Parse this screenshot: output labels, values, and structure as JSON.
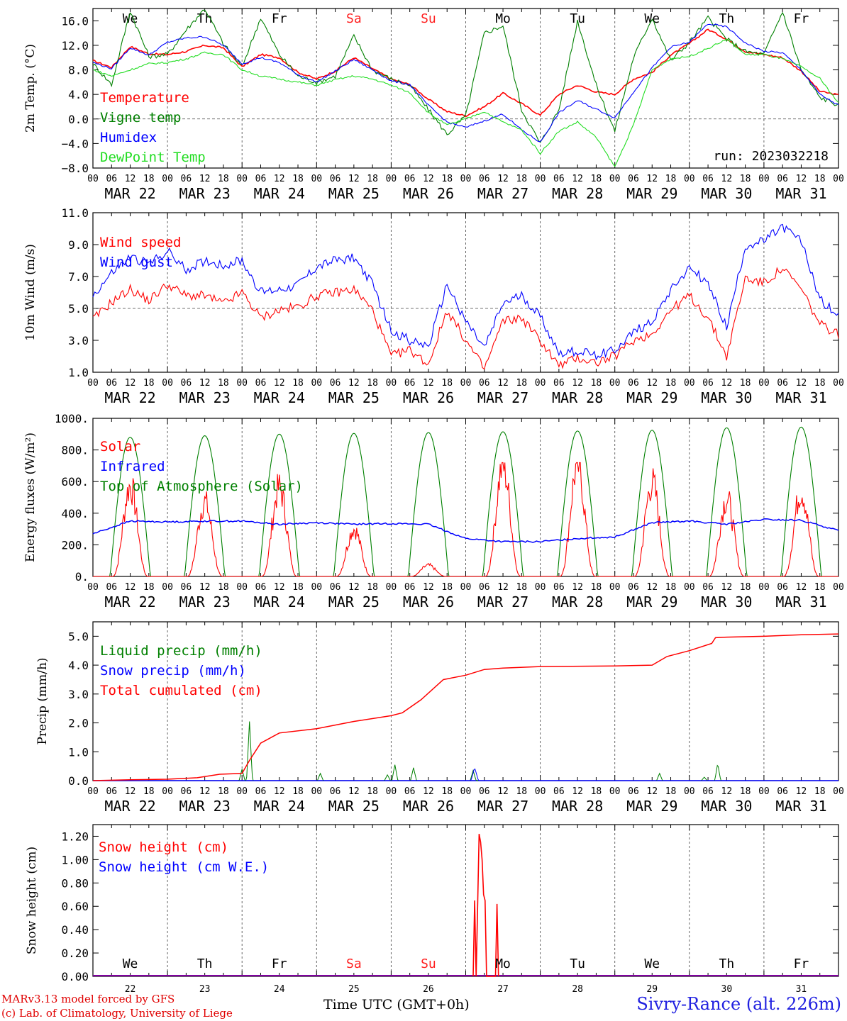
{
  "run_label": "run: 2023032218",
  "station": "Sivry-Rance (alt. 226m)",
  "credit_model": "MARv3.13 model forced by GFS",
  "credit_lab": "(c) Lab. of Climatology, University of Liege",
  "xaxis_title": "Time UTC (GMT+0h)",
  "xaxis_overlap": "MAR",
  "hour_ticks": [
    "00",
    "06",
    "12",
    "18"
  ],
  "dates": [
    "MAR 22",
    "MAR 23",
    "MAR 24",
    "MAR 25",
    "MAR 26",
    "MAR 27",
    "MAR 28",
    "MAR 29",
    "MAR 30",
    "MAR 31"
  ],
  "days_top": [
    {
      "label": "We",
      "weekend": false
    },
    {
      "label": "Th",
      "weekend": false
    },
    {
      "label": "Fr",
      "weekend": false
    },
    {
      "label": "Sa",
      "weekend": true
    },
    {
      "label": "Su",
      "weekend": true
    },
    {
      "label": "Mo",
      "weekend": false
    },
    {
      "label": "Tu",
      "weekend": false
    },
    {
      "label": "We",
      "weekend": false
    },
    {
      "label": "Th",
      "weekend": false
    },
    {
      "label": "Fr",
      "weekend": false
    }
  ],
  "day_numbers": [
    "22",
    "23",
    "24",
    "25",
    "26",
    "27",
    "28",
    "29",
    "30",
    "31"
  ],
  "colors": {
    "red": "#ff0000",
    "green": "#008000",
    "blue": "#0000ff",
    "lightgreen": "#22dd22",
    "sat": "#ff2020"
  },
  "chart_data": [
    {
      "type": "line",
      "ylabel": "2m Temp. (°C)",
      "ylim": [
        -8,
        18
      ],
      "yticks": [
        "16.0",
        "12.0",
        "8.0",
        "4.0",
        "0.0",
        "−4.0",
        "−8.0"
      ],
      "ytick_values": [
        16,
        12,
        8,
        4,
        0,
        -4,
        -8
      ],
      "zero_line": 0,
      "x_days": [
        0,
        0.25,
        0.5,
        0.75,
        1,
        1.25,
        1.5,
        1.75,
        2,
        2.25,
        2.5,
        2.75,
        3,
        3.25,
        3.5,
        3.75,
        4,
        4.25,
        4.5,
        4.75,
        5,
        5.25,
        5.5,
        5.75,
        6,
        6.25,
        6.5,
        6.75,
        7,
        7.25,
        7.5,
        7.75,
        8,
        8.25,
        8.5,
        8.75,
        9,
        9.25,
        9.5,
        9.75,
        10
      ],
      "series": [
        {
          "name": "Temperature",
          "color": "red",
          "values": [
            9.5,
            8.4,
            11.8,
            10.6,
            10.5,
            11.0,
            12.0,
            11.6,
            8.5,
            10.5,
            10.0,
            7.6,
            6.5,
            7.8,
            10.0,
            8.2,
            6.5,
            5.6,
            3.2,
            1.2,
            0.5,
            2.0,
            4.2,
            2.5,
            0.6,
            4.0,
            5.5,
            4.4,
            4.0,
            6.5,
            7.6,
            10.4,
            12.3,
            14.6,
            13.0,
            11.0,
            10.5,
            10.0,
            7.8,
            4.5,
            3.9
          ]
        },
        {
          "name": "Vigne temp",
          "color": "green",
          "values": [
            9.0,
            5.6,
            17.6,
            10.2,
            10.5,
            14.5,
            18.0,
            12.2,
            8.5,
            16.5,
            10.5,
            7.0,
            6.0,
            7.0,
            13.5,
            8.0,
            6.5,
            5.5,
            1.5,
            -2.5,
            0.5,
            14.0,
            15.2,
            1.5,
            -4.0,
            1.5,
            16.0,
            5.5,
            -2.0,
            10.0,
            16.5,
            9.5,
            12.5,
            16.5,
            13.0,
            11.0,
            10.5,
            17.5,
            8.0,
            3.5,
            2.3
          ]
        },
        {
          "name": "Humidex",
          "color": "blue",
          "values": [
            9.2,
            8.2,
            11.6,
            10.4,
            12.5,
            13.2,
            13.4,
            12.0,
            9.0,
            10.0,
            9.2,
            7.2,
            6.0,
            7.8,
            9.7,
            8.0,
            6.2,
            5.6,
            2.2,
            -0.5,
            -1.4,
            -0.3,
            0.8,
            -1.8,
            -3.8,
            1.0,
            3.0,
            1.6,
            0.2,
            4.4,
            8.3,
            11.7,
            12.5,
            15.5,
            15.0,
            12.4,
            11.0,
            10.8,
            8.0,
            4.0,
            2.2
          ]
        },
        {
          "name": "DewPoint Temp",
          "color": "lightgreen",
          "values": [
            8.0,
            7.0,
            8.0,
            9.0,
            9.2,
            9.8,
            10.8,
            10.5,
            8.0,
            7.0,
            6.5,
            6.0,
            5.5,
            6.4,
            7.0,
            6.5,
            5.5,
            4.3,
            1.0,
            -1.0,
            0.0,
            1.2,
            -0.5,
            -1.8,
            -5.6,
            -2.0,
            -0.5,
            -3.0,
            -7.8,
            -1.0,
            8.0,
            9.8,
            10.2,
            11.5,
            13.0,
            10.5,
            10.5,
            9.8,
            8.5,
            6.6,
            2.6
          ]
        }
      ]
    },
    {
      "type": "line",
      "ylabel": "10m Wind (m/s)",
      "ylim": [
        1,
        11
      ],
      "yticks": [
        "11.0",
        "9.0",
        "7.0",
        "5.0",
        "3.0",
        "1.0"
      ],
      "ytick_values": [
        11,
        9,
        7,
        5,
        3,
        1
      ],
      "zero_line": 5,
      "x_days": [
        0,
        0.25,
        0.5,
        0.75,
        1,
        1.25,
        1.5,
        1.75,
        2,
        2.25,
        2.5,
        2.75,
        3,
        3.25,
        3.5,
        3.75,
        4,
        4.25,
        4.5,
        4.75,
        5,
        5.25,
        5.5,
        5.75,
        6,
        6.25,
        6.5,
        6.75,
        7,
        7.25,
        7.5,
        7.75,
        8,
        8.25,
        8.5,
        8.75,
        9,
        9.25,
        9.5,
        9.75,
        10
      ],
      "series": [
        {
          "name": "Wind speed",
          "color": "red",
          "values": [
            4.3,
            5.4,
            6.2,
            5.5,
            6.5,
            5.8,
            5.8,
            5.3,
            6.0,
            4.4,
            4.9,
            5.1,
            5.8,
            6.0,
            6.2,
            4.9,
            2.0,
            2.4,
            1.5,
            4.9,
            3.0,
            1.2,
            4.2,
            4.4,
            3.0,
            1.4,
            1.9,
            1.6,
            2.0,
            3.0,
            3.4,
            4.9,
            5.8,
            4.4,
            2.0,
            6.9,
            6.6,
            7.5,
            6.2,
            4.0,
            3.4
          ]
        },
        {
          "name": "Wind gust",
          "color": "blue",
          "values": [
            5.8,
            7.2,
            8.2,
            7.8,
            8.6,
            7.4,
            8.0,
            7.7,
            8.0,
            6.0,
            6.2,
            6.5,
            7.6,
            8.0,
            8.2,
            6.5,
            3.6,
            3.0,
            2.6,
            6.5,
            4.2,
            2.5,
            5.3,
            5.8,
            4.5,
            2.2,
            2.3,
            2.1,
            2.4,
            3.5,
            4.2,
            6.2,
            7.6,
            6.5,
            3.8,
            8.9,
            9.2,
            10.1,
            9.2,
            5.6,
            4.5
          ]
        }
      ]
    },
    {
      "type": "line",
      "ylabel": "Energy fluxes (W/m²)",
      "ylim": [
        0,
        1000
      ],
      "yticks": [
        "1000.",
        "800.",
        "600.",
        "400.",
        "200.",
        "0."
      ],
      "ytick_values": [
        1000,
        800,
        600,
        400,
        200,
        0
      ],
      "noon_peaks_solar": [
        570,
        470,
        560,
        300,
        70,
        700,
        700,
        590,
        490,
        540
      ],
      "noon_peaks_toa": [
        880,
        890,
        900,
        905,
        910,
        915,
        920,
        925,
        940,
        945
      ],
      "infrared_days": [
        0,
        0.5,
        1,
        1.5,
        2,
        2.5,
        3,
        3.5,
        4,
        4.5,
        5,
        5.5,
        6,
        6.5,
        7,
        7.5,
        8,
        8.5,
        9,
        9.5,
        10
      ],
      "infrared_values": [
        270,
        350,
        345,
        350,
        350,
        330,
        340,
        330,
        335,
        330,
        240,
        220,
        220,
        240,
        250,
        340,
        350,
        330,
        360,
        355,
        290
      ],
      "series": [
        {
          "name": "Solar",
          "color": "red"
        },
        {
          "name": "Infrared",
          "color": "blue"
        },
        {
          "name": "Top of Atmosphere (Solar)",
          "color": "green"
        }
      ]
    },
    {
      "type": "line",
      "ylabel": "Precip (mm/h)",
      "ylim": [
        0,
        5.5
      ],
      "yticks": [
        "5.0",
        "4.0",
        "3.0",
        "2.0",
        "1.0",
        "0.0"
      ],
      "ytick_values": [
        5,
        4,
        3,
        2,
        1,
        0
      ],
      "x_days": [
        0,
        0.5,
        1,
        1.4,
        1.7,
        2,
        2.1,
        2.25,
        2.5,
        3,
        3.5,
        4,
        4.15,
        4.4,
        4.7,
        5,
        5.25,
        5.5,
        6,
        7,
        7.5,
        7.7,
        8,
        8.3,
        8.35,
        8.5,
        9,
        9.5,
        10
      ],
      "series": [
        {
          "name": "Liquid precip (mm/h)",
          "color": "green",
          "spikes": [
            [
              2.1,
              2.05
            ],
            [
              2.0,
              0.4
            ],
            [
              3.05,
              0.25
            ],
            [
              3.95,
              0.2
            ],
            [
              4.05,
              0.55
            ],
            [
              4.3,
              0.45
            ],
            [
              5.1,
              0.35
            ],
            [
              7.6,
              0.25
            ],
            [
              8.38,
              0.6
            ],
            [
              8.2,
              0.12
            ]
          ]
        },
        {
          "name": "Snow precip (mm/h)",
          "color": "blue",
          "spikes": [
            [
              5.12,
              0.45
            ]
          ]
        },
        {
          "name": "Total cumulated (cm)",
          "color": "red",
          "values": [
            0.0,
            0.03,
            0.05,
            0.1,
            0.22,
            0.25,
            0.7,
            1.3,
            1.65,
            1.8,
            2.05,
            2.25,
            2.35,
            2.8,
            3.5,
            3.65,
            3.85,
            3.9,
            3.95,
            3.97,
            4.0,
            4.3,
            4.5,
            4.75,
            4.95,
            4.97,
            5.0,
            5.05,
            5.08
          ]
        }
      ]
    },
    {
      "type": "line",
      "ylabel": "Snow height (cm)",
      "ylim": [
        0,
        1.3
      ],
      "yticks": [
        "1.20",
        "1.00",
        "0.80",
        "0.60",
        "0.40",
        "0.20",
        "0.00"
      ],
      "ytick_values": [
        1.2,
        1.0,
        0.8,
        0.6,
        0.4,
        0.2,
        0.0
      ],
      "series": [
        {
          "name": "Snow height (cm)",
          "color": "red",
          "x_days": [
            5.1,
            5.12,
            5.14,
            5.16,
            5.18,
            5.2,
            5.22,
            5.24,
            5.26,
            5.28,
            5.3,
            5.4,
            5.42,
            5.44
          ],
          "values": [
            0,
            0.65,
            0,
            0.6,
            1.22,
            1.15,
            1.0,
            0.7,
            0.65,
            0,
            0,
            0,
            0.62,
            0
          ]
        },
        {
          "name": "Snow height (cm W.E.)",
          "color": "blue",
          "x_days": [
            0,
            10
          ],
          "values": [
            0,
            0
          ]
        }
      ]
    }
  ]
}
